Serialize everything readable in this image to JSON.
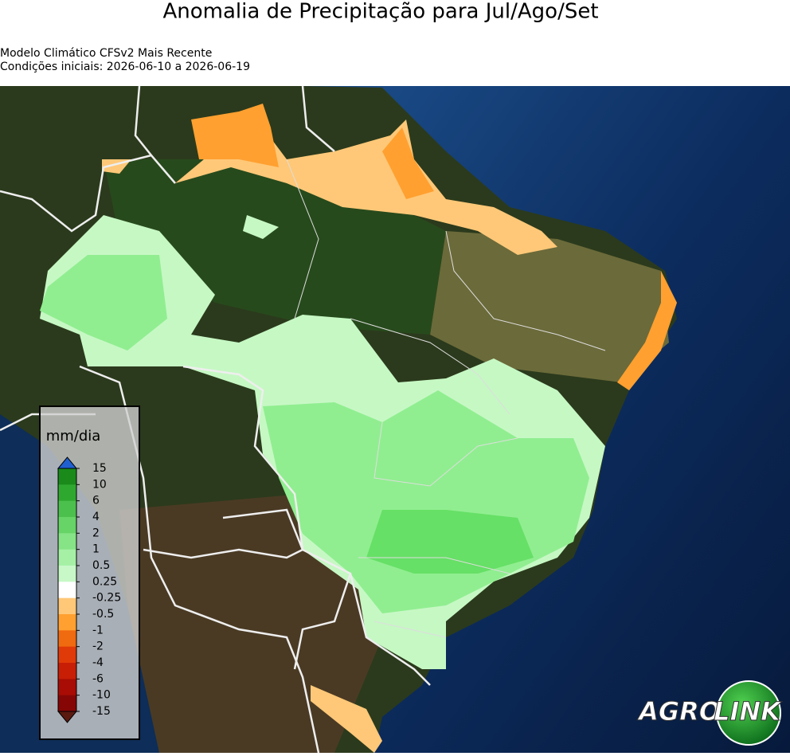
{
  "header": {
    "title": "Anomalia de Precipitação para Jul/Ago/Set",
    "subtitle_lines": [
      "Modelo Climático CFSv2 Mais Recente",
      "Condições iniciais: 2026-06-10 a 2026-06-19"
    ]
  },
  "colorbar": {
    "label": "mm/dia",
    "levels": [
      15,
      10,
      6,
      4,
      2,
      1,
      0.5,
      0.25,
      -0.25,
      -0.5,
      -1,
      -2,
      -4,
      -6,
      -10,
      -15
    ],
    "colors": [
      "#1a8a1a",
      "#2fa82f",
      "#4cc04c",
      "#66d466",
      "#86e486",
      "#a6f0a6",
      "#c8f8c8",
      "#ffffff",
      "#ffc878",
      "#ffa030",
      "#f06a10",
      "#e03a08",
      "#c81e06",
      "#a80c04",
      "#860606"
    ],
    "extend_colors": [
      "#1f5fd0",
      "#5a1a10"
    ]
  },
  "logo": {
    "left": "AGRO",
    "right": "LINK"
  }
}
